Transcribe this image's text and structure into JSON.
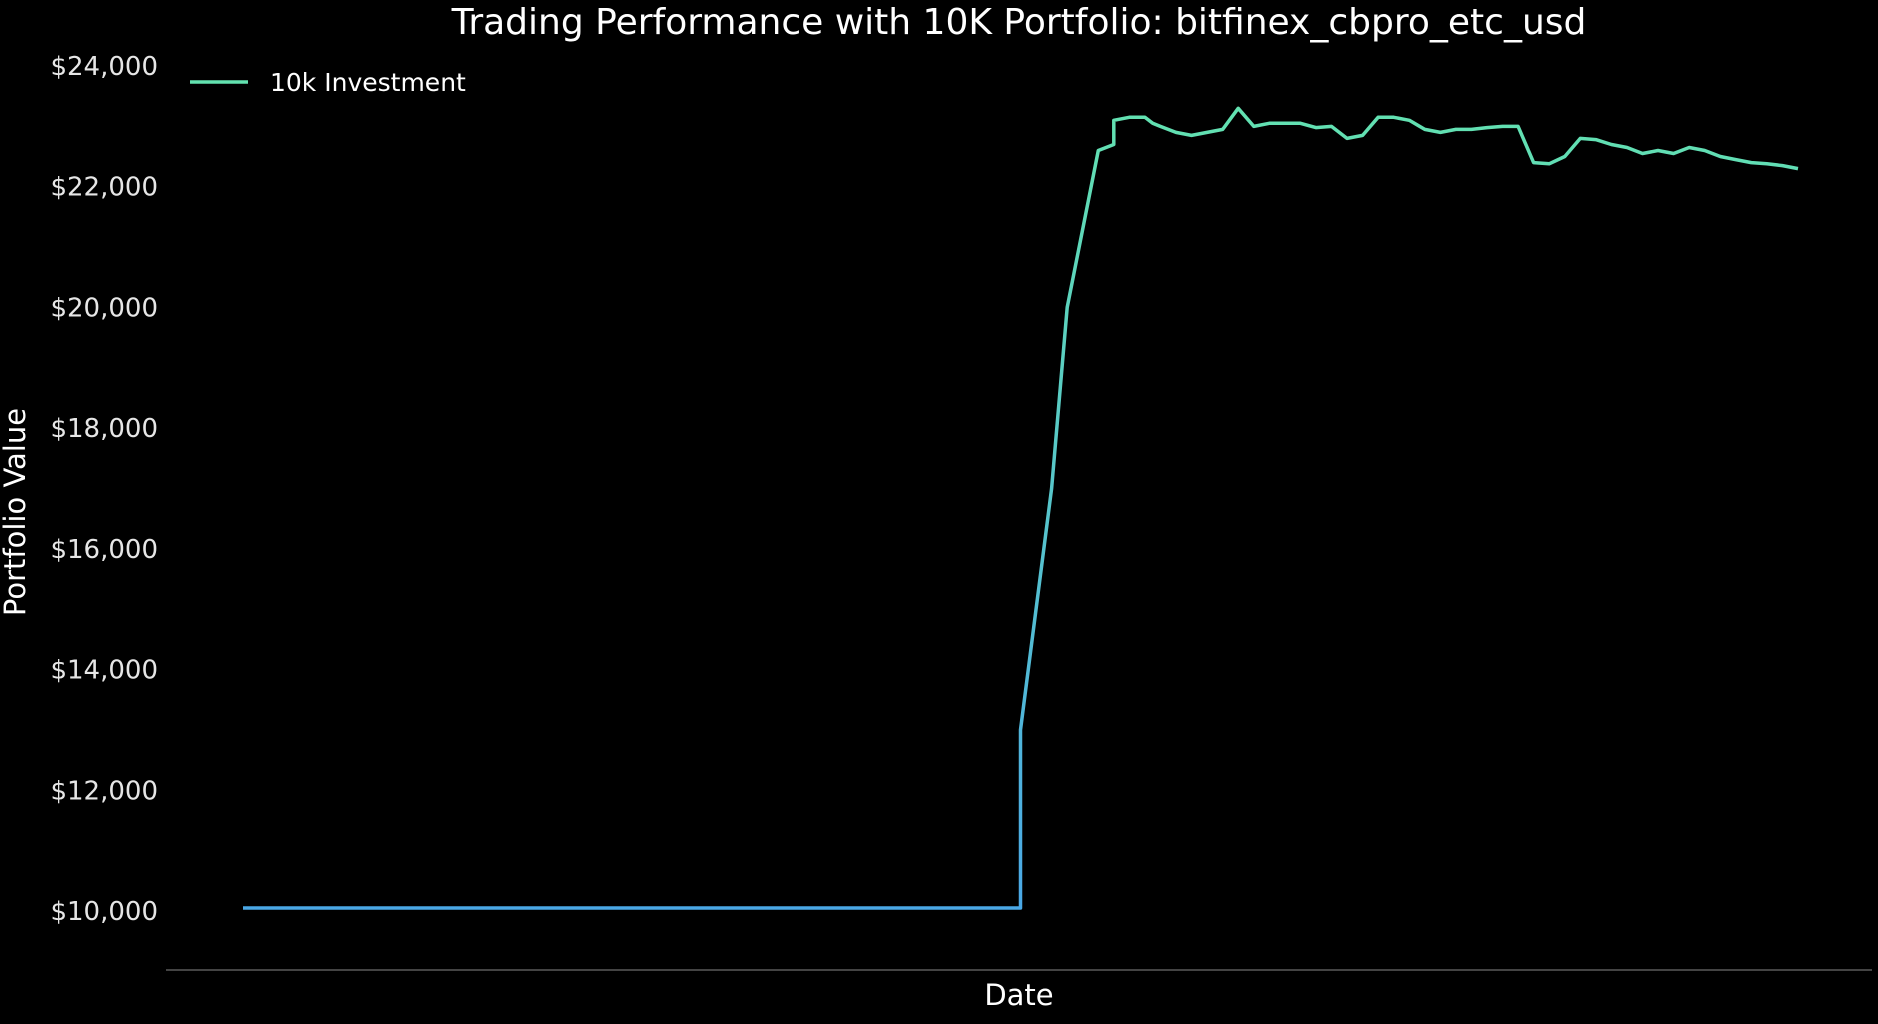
{
  "chart_data": {
    "type": "line",
    "title": "Trading Performance with 10K Portfolio: bitfinex_cbpro_etc_usd",
    "xlabel": "Date",
    "ylabel": "Portfolio Value",
    "y_tick_labels": [
      "$10,000",
      "$12,000",
      "$14,000",
      "$16,000",
      "$18,000",
      "$20,000",
      "$22,000",
      "$24,000"
    ],
    "y_ticks": [
      10000,
      12000,
      14000,
      16000,
      18000,
      20000,
      22000,
      24000
    ],
    "ylim": [
      9000,
      24300
    ],
    "x_ticks_shown": false,
    "grid": false,
    "legend": {
      "placement": "top-left",
      "entries": [
        "10k Investment"
      ]
    },
    "colors": {
      "background": "#000000",
      "line_low": "#4aa8e6",
      "line_high": "#63e2b0",
      "axis": "#5a5a5a"
    },
    "series": [
      {
        "name": "10k Investment",
        "x": [
          0,
          0.5,
          0.5,
          0.52,
          0.53,
          0.55,
          0.56,
          0.56,
          0.57,
          0.58,
          0.585,
          0.59,
          0.6,
          0.61,
          0.62,
          0.63,
          0.64,
          0.65,
          0.66,
          0.67,
          0.68,
          0.69,
          0.7,
          0.71,
          0.72,
          0.73,
          0.74,
          0.75,
          0.76,
          0.77,
          0.78,
          0.79,
          0.8,
          0.81,
          0.82,
          0.83,
          0.84,
          0.85,
          0.86,
          0.87,
          0.88,
          0.89,
          0.9,
          0.91,
          0.92,
          0.93,
          0.94,
          0.95,
          0.96,
          0.97,
          0.98,
          0.99,
          1.0
        ],
        "values": [
          10050,
          10050,
          13000,
          17000,
          20000,
          22600,
          22700,
          23100,
          23150,
          23150,
          23050,
          23000,
          22900,
          22850,
          22900,
          22950,
          23300,
          23000,
          23050,
          23050,
          23050,
          22980,
          23000,
          22800,
          22850,
          23150,
          23150,
          23100,
          22950,
          22900,
          22950,
          22950,
          22980,
          23000,
          23000,
          22400,
          22380,
          22500,
          22800,
          22780,
          22700,
          22650,
          22550,
          22600,
          22550,
          22650,
          22600,
          22500,
          22450,
          22400,
          22380,
          22350,
          22300
        ]
      }
    ]
  }
}
